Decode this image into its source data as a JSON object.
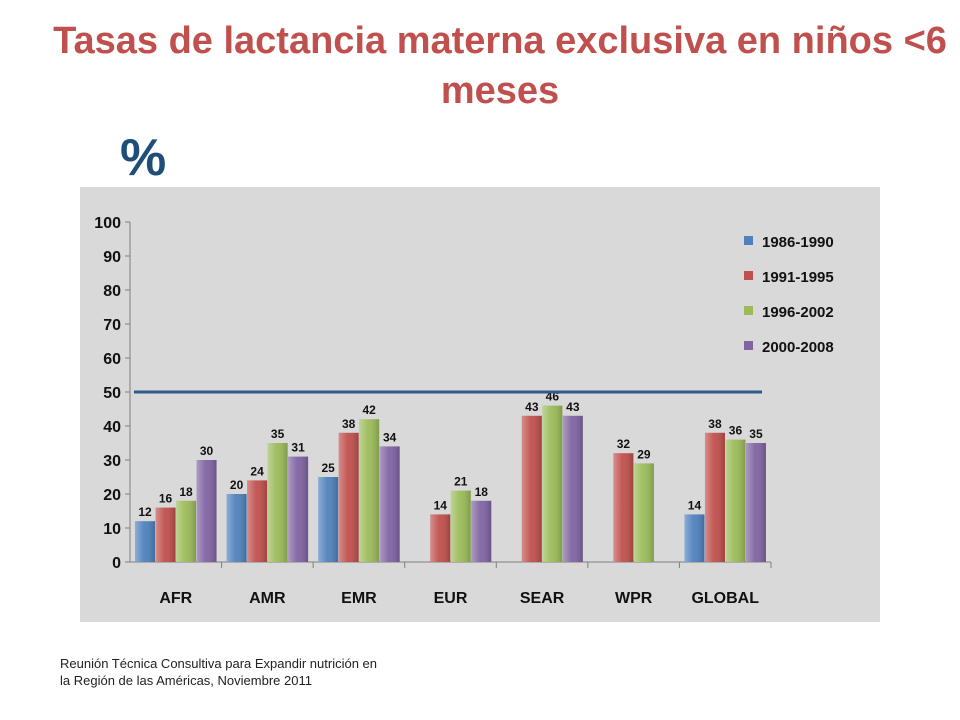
{
  "title": "Tasas de lactancia materna exclusiva en niños <6 meses",
  "y_unit": "%",
  "footnote": "Reunión Técnica Consultiva para Expandir nutrición en la Región de las Américas, Noviembre 2011",
  "chart_data": {
    "type": "bar",
    "categories": [
      "AFR",
      "AMR",
      "EMR",
      "EUR",
      "SEAR",
      "WPR",
      "GLOBAL"
    ],
    "series": [
      {
        "name": "1986-1990",
        "color": "#4f81bd",
        "values": [
          12,
          20,
          25,
          null,
          null,
          null,
          14
        ]
      },
      {
        "name": "1991-1995",
        "color": "#c0504d",
        "values": [
          16,
          24,
          38,
          14,
          43,
          32,
          38
        ]
      },
      {
        "name": "1996-2002",
        "color": "#9bbb59",
        "values": [
          18,
          35,
          42,
          21,
          46,
          29,
          36
        ]
      },
      {
        "name": "2000-2008",
        "color": "#8064a2",
        "values": [
          30,
          31,
          34,
          18,
          43,
          null,
          35
        ]
      }
    ],
    "ylim": [
      0,
      100
    ],
    "yticks": [
      0,
      10,
      20,
      30,
      40,
      50,
      60,
      70,
      80,
      90,
      100
    ],
    "reference_line": {
      "value": 50,
      "color": "#2e5c8a"
    },
    "legend_position": "top-right",
    "grid": false
  }
}
